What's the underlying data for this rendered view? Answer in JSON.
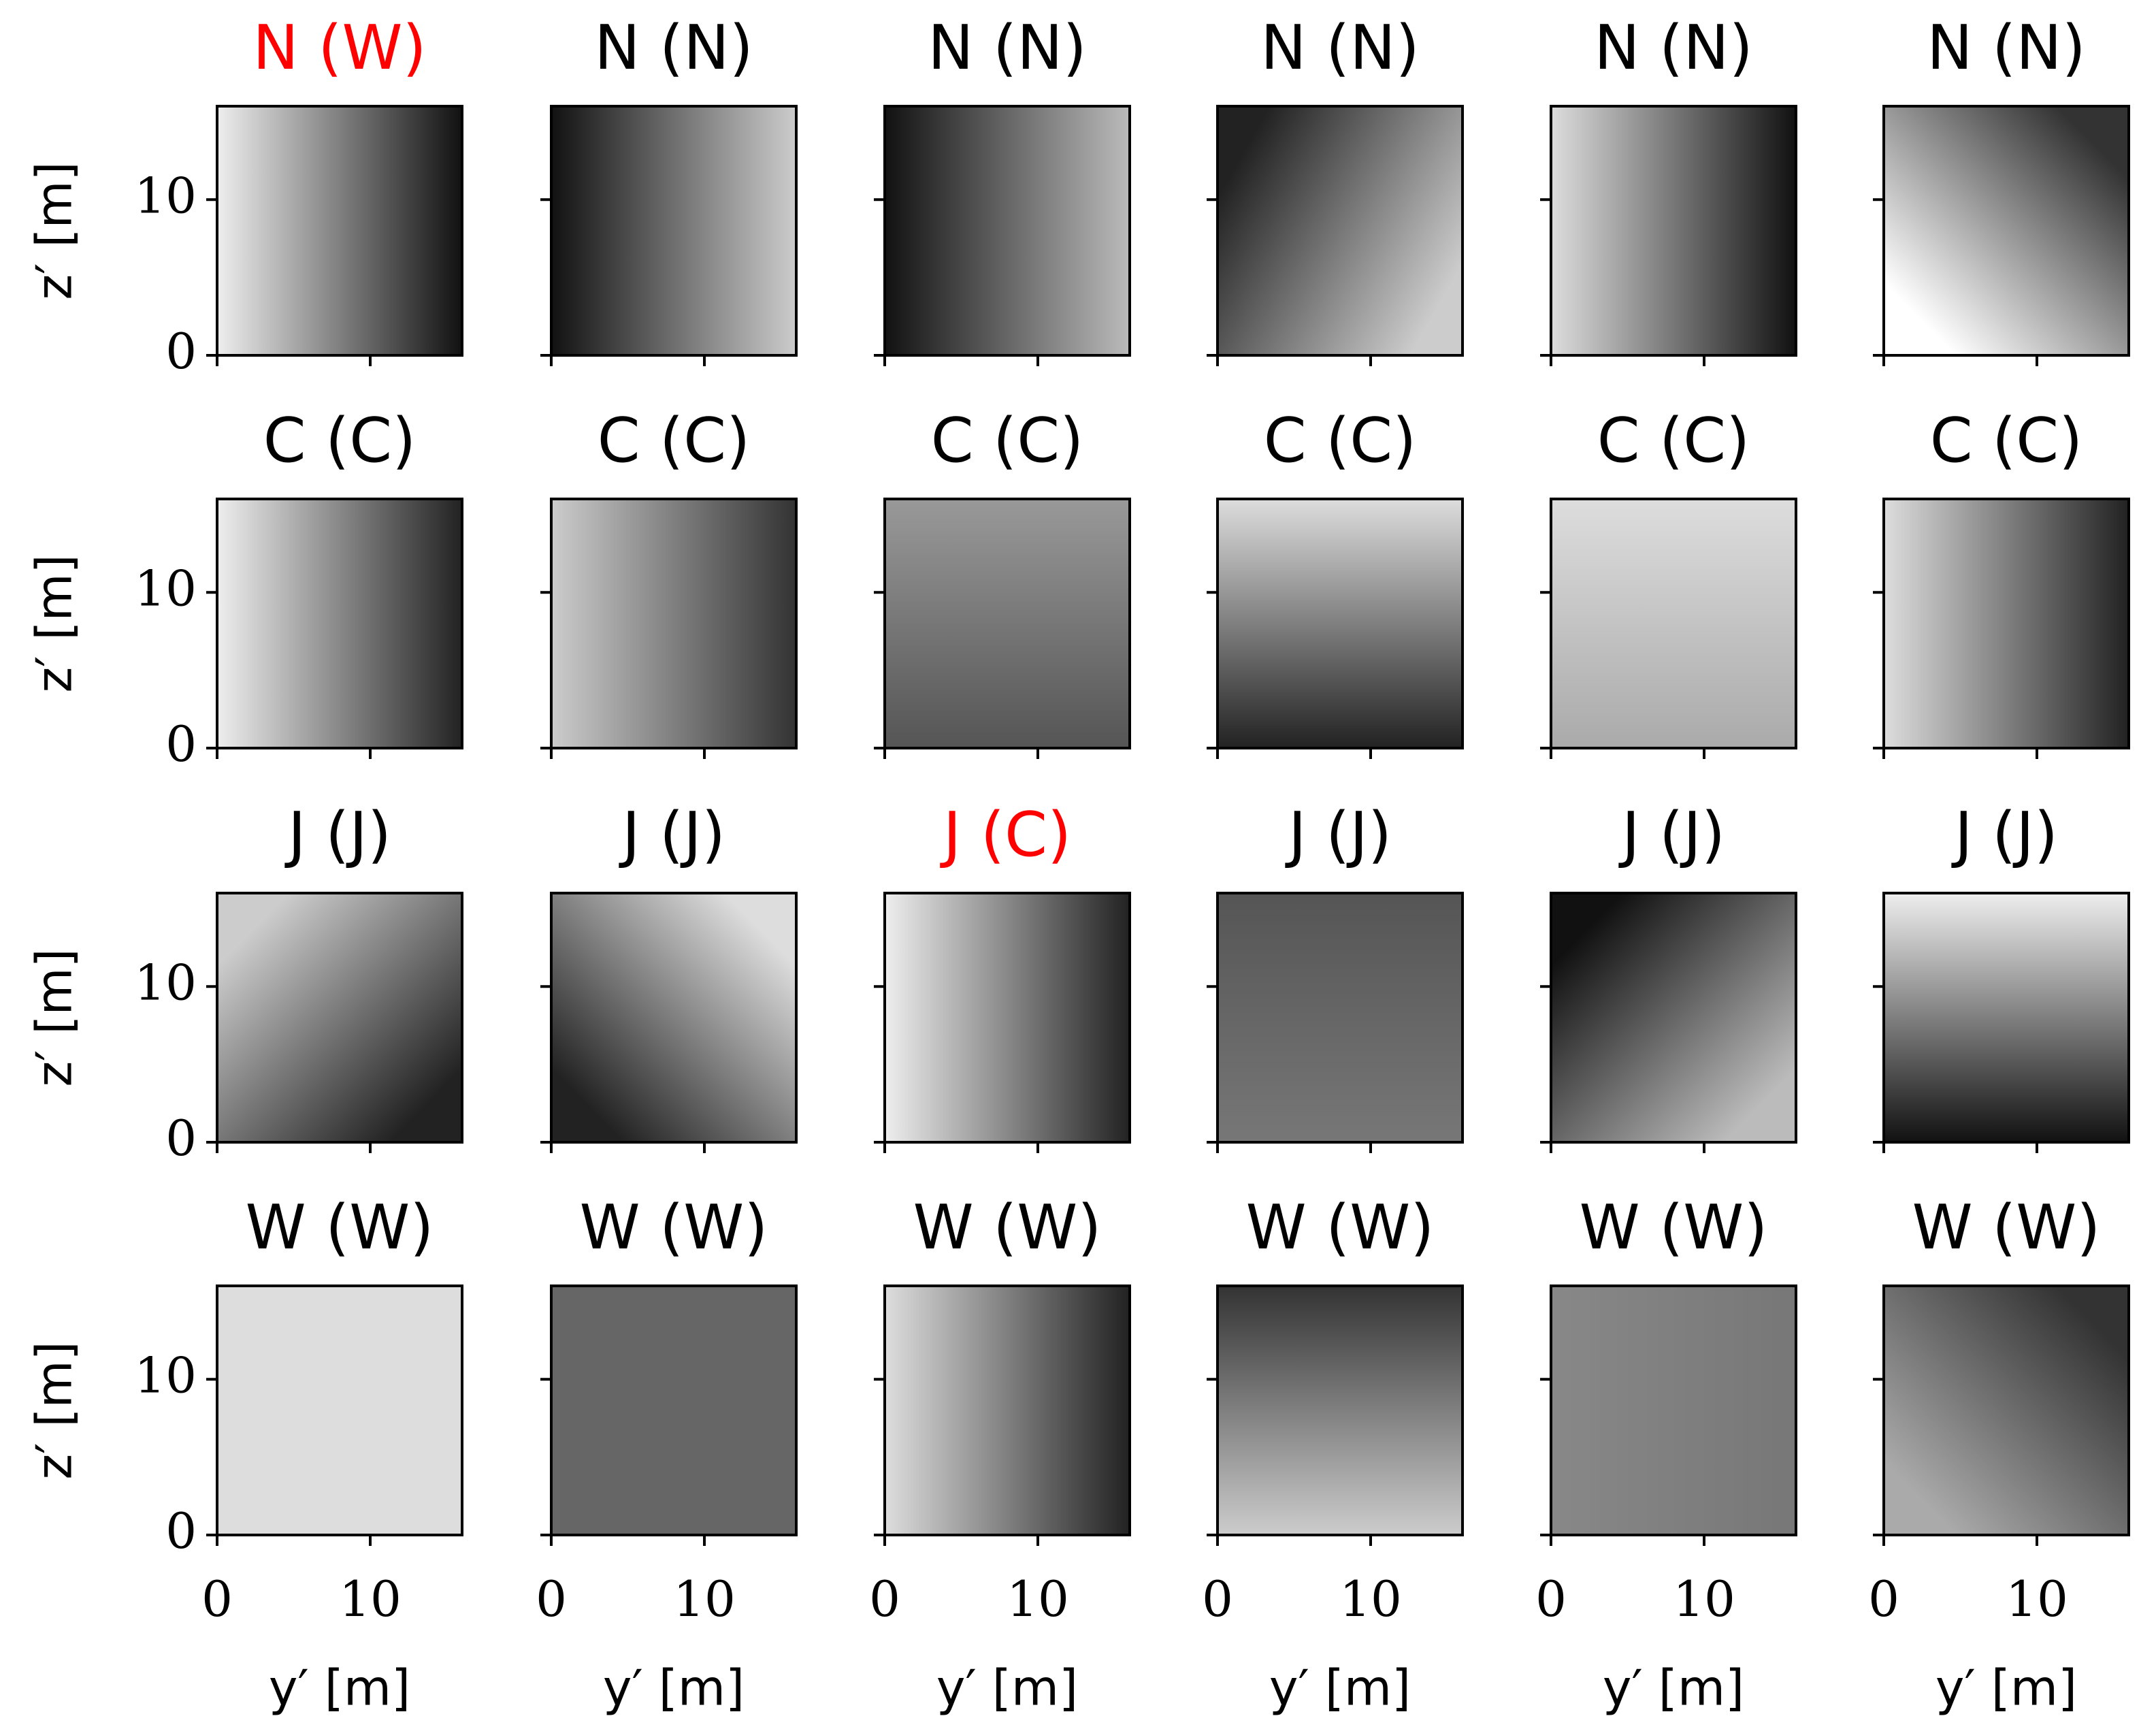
{
  "chart_data": [
    {
      "type": "image",
      "title": "N (W)",
      "title_color": "#ff0000",
      "xlim": [
        0,
        16
      ],
      "ylim": [
        0,
        16
      ],
      "xticks": [
        0,
        10
      ],
      "yticks": [
        0,
        10
      ],
      "ylabel": "z′ [m]"
    },
    {
      "type": "image",
      "title": "N (N)",
      "title_color": "#000000",
      "xlim": [
        0,
        16
      ],
      "ylim": [
        0,
        16
      ],
      "xticks": [
        0,
        10
      ],
      "yticks": [
        0,
        10
      ]
    },
    {
      "type": "image",
      "title": "N (N)",
      "title_color": "#000000",
      "xlim": [
        0,
        16
      ],
      "ylim": [
        0,
        16
      ],
      "xticks": [
        0,
        10
      ],
      "yticks": [
        0,
        10
      ]
    },
    {
      "type": "image",
      "title": "N (N)",
      "title_color": "#000000",
      "xlim": [
        0,
        16
      ],
      "ylim": [
        0,
        16
      ],
      "xticks": [
        0,
        10
      ],
      "yticks": [
        0,
        10
      ]
    },
    {
      "type": "image",
      "title": "N (N)",
      "title_color": "#000000",
      "xlim": [
        0,
        16
      ],
      "ylim": [
        0,
        16
      ],
      "xticks": [
        0,
        10
      ],
      "yticks": [
        0,
        10
      ]
    },
    {
      "type": "image",
      "title": "N (N)",
      "title_color": "#000000",
      "xlim": [
        0,
        16
      ],
      "ylim": [
        0,
        16
      ],
      "xticks": [
        0,
        10
      ],
      "yticks": [
        0,
        10
      ]
    },
    {
      "type": "image",
      "title": "C (C)",
      "title_color": "#000000",
      "xlim": [
        0,
        16
      ],
      "ylim": [
        0,
        16
      ],
      "xticks": [
        0,
        10
      ],
      "yticks": [
        0,
        10
      ],
      "ylabel": "z′ [m]"
    },
    {
      "type": "image",
      "title": "C (C)",
      "title_color": "#000000",
      "xlim": [
        0,
        16
      ],
      "ylim": [
        0,
        16
      ],
      "xticks": [
        0,
        10
      ],
      "yticks": [
        0,
        10
      ]
    },
    {
      "type": "image",
      "title": "C (C)",
      "title_color": "#000000",
      "xlim": [
        0,
        16
      ],
      "ylim": [
        0,
        16
      ],
      "xticks": [
        0,
        10
      ],
      "yticks": [
        0,
        10
      ]
    },
    {
      "type": "image",
      "title": "C (C)",
      "title_color": "#000000",
      "xlim": [
        0,
        16
      ],
      "ylim": [
        0,
        16
      ],
      "xticks": [
        0,
        10
      ],
      "yticks": [
        0,
        10
      ]
    },
    {
      "type": "image",
      "title": "C (C)",
      "title_color": "#000000",
      "xlim": [
        0,
        16
      ],
      "ylim": [
        0,
        16
      ],
      "xticks": [
        0,
        10
      ],
      "yticks": [
        0,
        10
      ]
    },
    {
      "type": "image",
      "title": "C (C)",
      "title_color": "#000000",
      "xlim": [
        0,
        16
      ],
      "ylim": [
        0,
        16
      ],
      "xticks": [
        0,
        10
      ],
      "yticks": [
        0,
        10
      ]
    },
    {
      "type": "image",
      "title": "J (J)",
      "title_color": "#000000",
      "xlim": [
        0,
        16
      ],
      "ylim": [
        0,
        16
      ],
      "xticks": [
        0,
        10
      ],
      "yticks": [
        0,
        10
      ],
      "ylabel": "z′ [m]"
    },
    {
      "type": "image",
      "title": "J (J)",
      "title_color": "#000000",
      "xlim": [
        0,
        16
      ],
      "ylim": [
        0,
        16
      ],
      "xticks": [
        0,
        10
      ],
      "yticks": [
        0,
        10
      ]
    },
    {
      "type": "image",
      "title": "J (C)",
      "title_color": "#ff0000",
      "xlim": [
        0,
        16
      ],
      "ylim": [
        0,
        16
      ],
      "xticks": [
        0,
        10
      ],
      "yticks": [
        0,
        10
      ]
    },
    {
      "type": "image",
      "title": "J (J)",
      "title_color": "#000000",
      "xlim": [
        0,
        16
      ],
      "ylim": [
        0,
        16
      ],
      "xticks": [
        0,
        10
      ],
      "yticks": [
        0,
        10
      ]
    },
    {
      "type": "image",
      "title": "J (J)",
      "title_color": "#000000",
      "xlim": [
        0,
        16
      ],
      "ylim": [
        0,
        16
      ],
      "xticks": [
        0,
        10
      ],
      "yticks": [
        0,
        10
      ]
    },
    {
      "type": "image",
      "title": "J (J)",
      "title_color": "#000000",
      "xlim": [
        0,
        16
      ],
      "ylim": [
        0,
        16
      ],
      "xticks": [
        0,
        10
      ],
      "yticks": [
        0,
        10
      ]
    },
    {
      "type": "image",
      "title": "W (W)",
      "title_color": "#000000",
      "xlim": [
        0,
        16
      ],
      "ylim": [
        0,
        16
      ],
      "xticks": [
        0,
        10
      ],
      "yticks": [
        0,
        10
      ],
      "ylabel": "z′ [m]",
      "xlabel": "y′ [m]"
    },
    {
      "type": "image",
      "title": "W (W)",
      "title_color": "#000000",
      "xlim": [
        0,
        16
      ],
      "ylim": [
        0,
        16
      ],
      "xticks": [
        0,
        10
      ],
      "yticks": [
        0,
        10
      ],
      "xlabel": "y′ [m]"
    },
    {
      "type": "image",
      "title": "W (W)",
      "title_color": "#000000",
      "xlim": [
        0,
        16
      ],
      "ylim": [
        0,
        16
      ],
      "xticks": [
        0,
        10
      ],
      "yticks": [
        0,
        10
      ],
      "xlabel": "y′ [m]"
    },
    {
      "type": "image",
      "title": "W (W)",
      "title_color": "#000000",
      "xlim": [
        0,
        16
      ],
      "ylim": [
        0,
        16
      ],
      "xticks": [
        0,
        10
      ],
      "yticks": [
        0,
        10
      ],
      "xlabel": "y′ [m]"
    },
    {
      "type": "image",
      "title": "W (W)",
      "title_color": "#000000",
      "xlim": [
        0,
        16
      ],
      "ylim": [
        0,
        16
      ],
      "xticks": [
        0,
        10
      ],
      "yticks": [
        0,
        10
      ],
      "xlabel": "y′ [m]"
    },
    {
      "type": "image",
      "title": "W (W)",
      "title_color": "#000000",
      "xlim": [
        0,
        16
      ],
      "ylim": [
        0,
        16
      ],
      "xticks": [
        0,
        10
      ],
      "yticks": [
        0,
        10
      ],
      "xlabel": "y′ [m]"
    }
  ]
}
